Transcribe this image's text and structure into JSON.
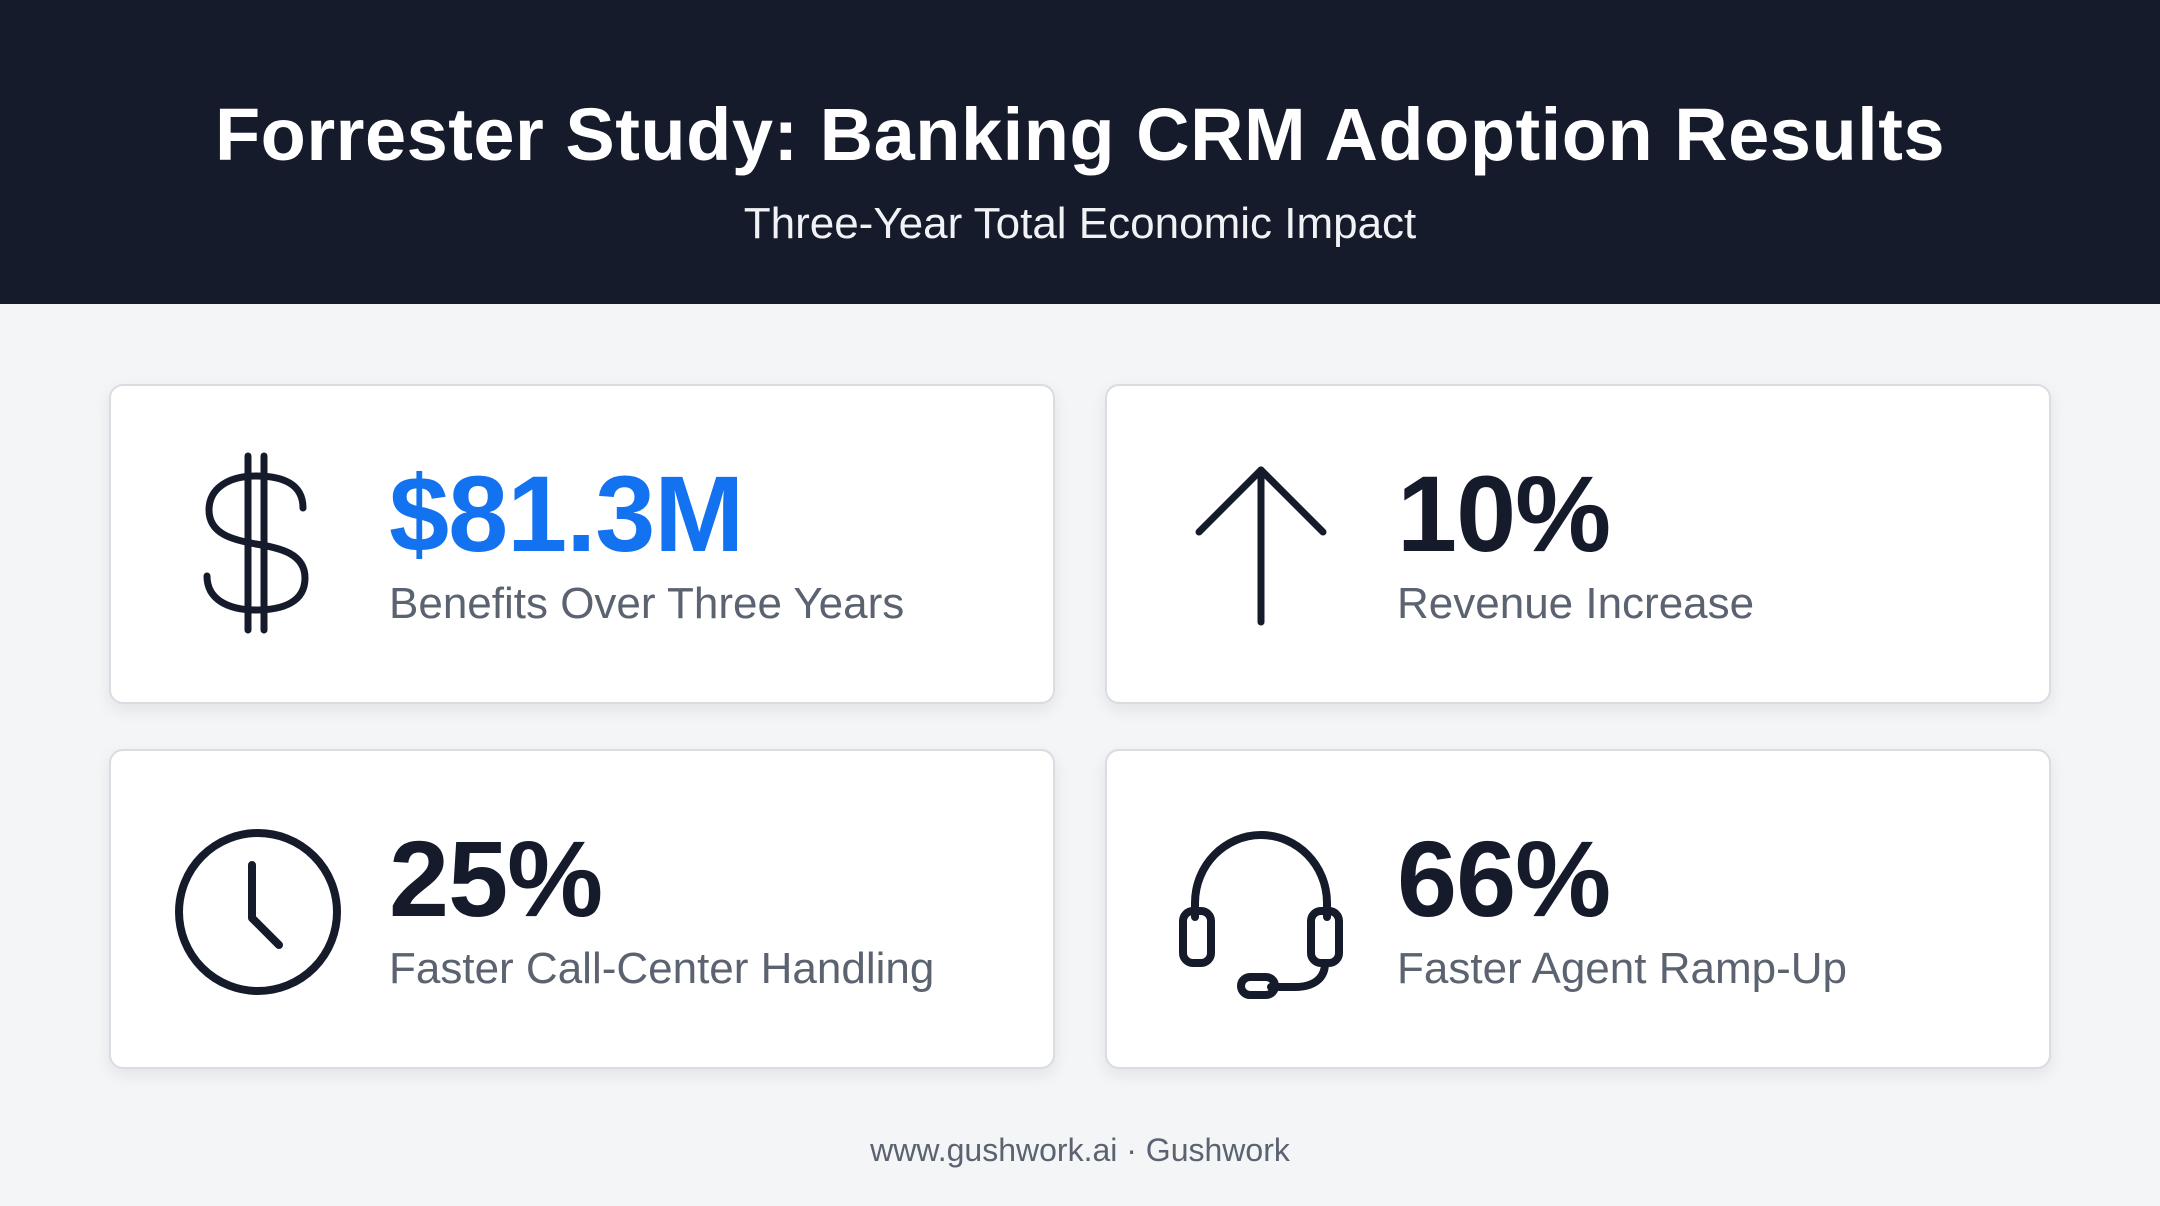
{
  "header": {
    "title": "Forrester Study: Banking CRM Adoption Results",
    "subtitle": "Three-Year Total Economic Impact"
  },
  "colors": {
    "header_bg": "#161b2b",
    "accent": "#1372f0",
    "text_dark": "#161b2b",
    "text_muted": "#5b6270"
  },
  "stats": [
    {
      "icon": "dollar-icon",
      "value": "$81.3M",
      "label": "Benefits Over Three Years"
    },
    {
      "icon": "arrow-up-icon",
      "value": "10%",
      "label": "Revenue Increase"
    },
    {
      "icon": "clock-icon",
      "value": "25%",
      "label": "Faster Call-Center Handling"
    },
    {
      "icon": "headset-icon",
      "value": "66%",
      "label": "Faster Agent Ramp-Up"
    }
  ],
  "footer": {
    "text": "www.gushwork.ai · Gushwork"
  }
}
